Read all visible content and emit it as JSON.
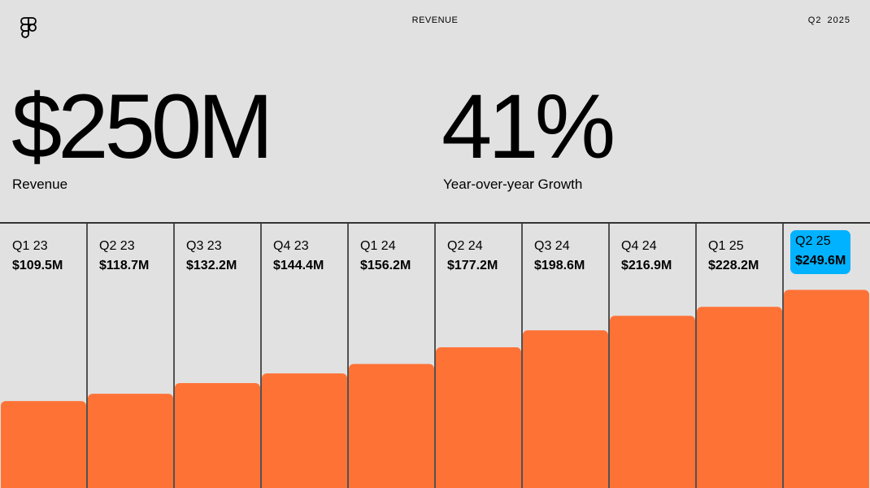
{
  "header": {
    "title": "REVENUE",
    "period": "Q2 2025",
    "logo_icon": "figma-logo-icon"
  },
  "kpis": [
    {
      "value": "$250M",
      "label": "Revenue"
    },
    {
      "value": "41%",
      "label": "Year-over-year Growth"
    }
  ],
  "chart_data": {
    "type": "bar",
    "categories": [
      "Q1 23",
      "Q2 23",
      "Q3 23",
      "Q4 23",
      "Q1 24",
      "Q2 24",
      "Q3 24",
      "Q4 24",
      "Q1 25",
      "Q2 25"
    ],
    "values": [
      109.5,
      118.7,
      132.2,
      144.4,
      156.2,
      177.2,
      198.6,
      216.9,
      228.2,
      249.6
    ],
    "value_labels": [
      "$109.5M",
      "$118.7M",
      "$132.2M",
      "$144.4M",
      "$156.2M",
      "$177.2M",
      "$198.6M",
      "$216.9M",
      "$228.2M",
      "$249.6M"
    ],
    "highlight_index": 9,
    "colors": {
      "bar": "#ff7236",
      "highlight": "#00b2ff",
      "divider": "#222222"
    },
    "ylim": [
      0,
      333
    ],
    "grid": false
  }
}
